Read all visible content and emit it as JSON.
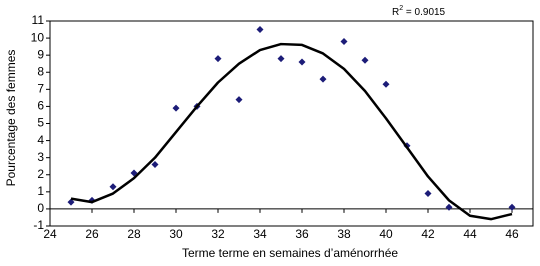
{
  "chart_data": {
    "type": "scatter",
    "x_label": "Terme terme en semaines d’aménorrhée",
    "y_label": "Pourcentage des femmes",
    "annotation": {
      "base": "R",
      "sup": "2",
      "text": " = 0.9015"
    },
    "xlim": [
      24,
      47
    ],
    "xticks": [
      24,
      26,
      28,
      30,
      32,
      34,
      36,
      38,
      40,
      42,
      44,
      46
    ],
    "ylim": [
      -1,
      11
    ],
    "yticks": [
      -1,
      0,
      1,
      2,
      3,
      4,
      5,
      6,
      7,
      8,
      9,
      10,
      11
    ],
    "grid": false,
    "series": [
      {
        "type": "scatter",
        "marker": "diamond",
        "color": "#1c1c78",
        "x": [
          25,
          26,
          27,
          28,
          29,
          30,
          31,
          32,
          33,
          34,
          35,
          36,
          37,
          38,
          39,
          40,
          41,
          42,
          43,
          46
        ],
        "values": [
          0.4,
          0.5,
          1.3,
          2.1,
          2.6,
          5.9,
          6.0,
          8.8,
          6.4,
          10.5,
          8.8,
          8.6,
          7.6,
          9.8,
          8.7,
          7.3,
          3.7,
          0.9,
          0.1,
          0.1
        ]
      },
      {
        "type": "line",
        "color": "#000000",
        "x": [
          25,
          26,
          27,
          28,
          29,
          30,
          31,
          32,
          33,
          34,
          35,
          36,
          37,
          38,
          39,
          40,
          41,
          42,
          43,
          44,
          45,
          46
        ],
        "values": [
          0.6,
          0.4,
          0.9,
          1.8,
          3.0,
          4.5,
          6.0,
          7.4,
          8.5,
          9.3,
          9.65,
          9.6,
          9.1,
          8.2,
          6.9,
          5.3,
          3.6,
          1.9,
          0.5,
          -0.4,
          -0.6,
          -0.3
        ]
      }
    ]
  }
}
